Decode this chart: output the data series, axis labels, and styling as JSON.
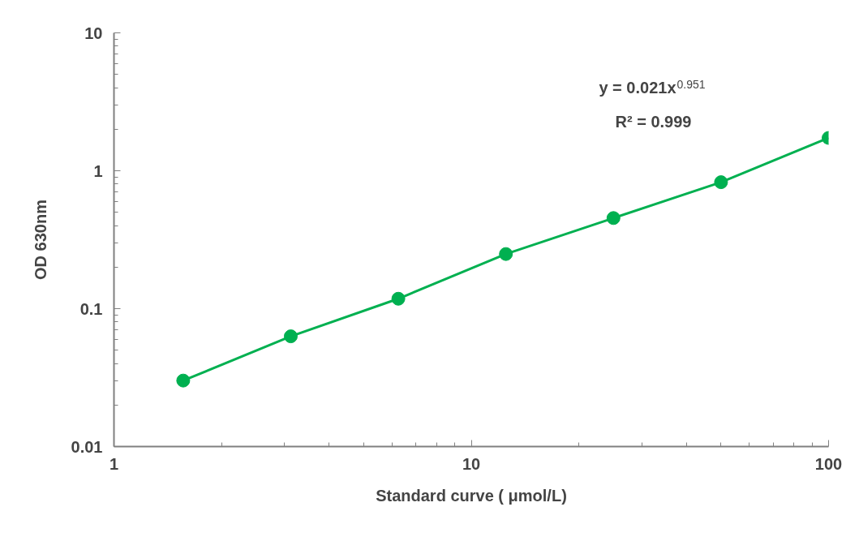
{
  "chart_data": {
    "type": "line",
    "xlabel": "Standard curve ( μmol/L)",
    "ylabel": "OD 630nm",
    "log": "xy",
    "x": [
      1.5625,
      3.125,
      6.25,
      12.5,
      25,
      50,
      100
    ],
    "series": [
      {
        "color": "#00b050",
        "values": [
          0.0301,
          0.063,
          0.118,
          0.249,
          0.454,
          0.826,
          1.73
        ]
      }
    ],
    "marker": "circle",
    "line_style": "solid",
    "grid": false,
    "xlim": [
      1,
      100
    ],
    "ylim": [
      0.01,
      10
    ],
    "xticks": [
      1,
      10,
      100
    ],
    "yticks": [
      0.01,
      0.1,
      1,
      10
    ],
    "annotations": [
      "y = 0.021x$^{0.951}$",
      "R² = 0.999"
    ]
  }
}
